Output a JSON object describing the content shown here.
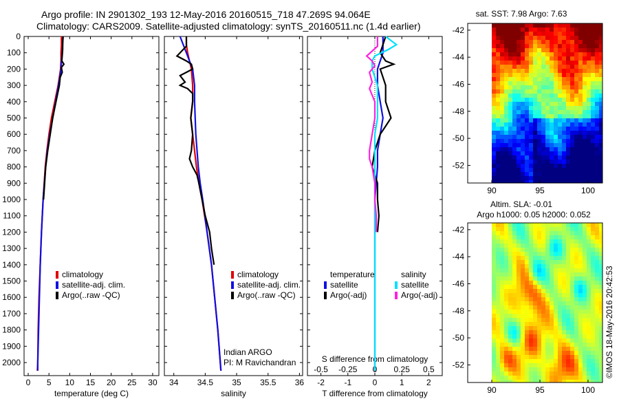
{
  "header": {
    "line1": "Argo profile: IN 2901302_193 12-May-2016 20160515_718 47.269S 94.064E",
    "line2": "Climatology: CARS2009. Satellite-adjusted climatology: synTS_20160511.nc (1.4d earlier)"
  },
  "colors": {
    "climatology": "#e00000",
    "satellite": "#1010e0",
    "argo": "#000000",
    "salinity_satellite": "#00e0ff",
    "salinity_argo": "#ff20e0"
  },
  "chart_data": [
    {
      "type": "line",
      "id": "temperature",
      "xlabel": "temperature (deg C)",
      "ylabel": "",
      "xlim": [
        -1,
        31.5
      ],
      "ylim": [
        2080,
        0
      ],
      "x_ticks": [
        "0",
        "5",
        "10",
        "15",
        "20",
        "25",
        "30"
      ],
      "x_tick_values": [
        0,
        5,
        10,
        15,
        20,
        25,
        30
      ],
      "y_ticks": [
        0,
        100,
        200,
        300,
        400,
        500,
        600,
        700,
        800,
        900,
        1000,
        1100,
        1200,
        1300,
        1400,
        1500,
        1600,
        1700,
        1800,
        1900,
        2000
      ],
      "legend": [
        "climatology",
        "satellite-adj. clim.",
        "Argo(..raw -QC)"
      ],
      "series": [
        {
          "name": "climatology",
          "color": "#e00000",
          "depth": [
            0,
            50,
            100,
            150,
            200,
            250,
            300,
            400,
            500,
            600,
            700,
            800,
            1000,
            1200,
            1400,
            1600,
            1800,
            2000,
            2050
          ],
          "values": [
            8.0,
            8.0,
            7.9,
            7.9,
            7.8,
            7.5,
            7.2,
            6.4,
            5.6,
            5.0,
            4.5,
            4.1,
            3.6,
            3.2,
            2.9,
            2.6,
            2.4,
            2.3,
            2.2
          ]
        },
        {
          "name": "satellite-adj. clim.",
          "color": "#1010e0",
          "depth": [
            0,
            50,
            100,
            150,
            200,
            250,
            300,
            400,
            500,
            600,
            700,
            800,
            1000,
            1200,
            1400,
            1600,
            1800,
            2000,
            2050
          ],
          "values": [
            8.4,
            8.3,
            8.2,
            8.0,
            7.9,
            7.6,
            7.3,
            6.6,
            5.9,
            5.2,
            4.6,
            4.2,
            3.6,
            3.2,
            2.9,
            2.7,
            2.5,
            2.3,
            2.3
          ]
        },
        {
          "name": "Argo(..raw -QC)",
          "color": "#000000",
          "depth": [
            0,
            40,
            80,
            150,
            170,
            190,
            220,
            250,
            300,
            400,
            500,
            600,
            700,
            800,
            1000
          ],
          "values": [
            8.4,
            8.3,
            8.3,
            8.1,
            8.6,
            8.0,
            8.2,
            7.7,
            7.5,
            6.7,
            5.9,
            5.3,
            4.7,
            4.2,
            3.7
          ]
        }
      ]
    },
    {
      "type": "line",
      "id": "salinity",
      "xlabel": "salinity",
      "ylabel": "",
      "xlim": [
        33.85,
        36.05
      ],
      "ylim": [
        2080,
        0
      ],
      "x_ticks": [
        "34",
        "34.5",
        "35",
        "35.5",
        "36"
      ],
      "x_tick_values": [
        34,
        34.5,
        35,
        35.5,
        36
      ],
      "legend": [
        "climatology",
        "satellite-adj. clim.",
        "Argo(..raw -QC)"
      ],
      "annotation": [
        "Indian ARGO",
        "PI: M Ravichandran"
      ],
      "series": [
        {
          "name": "climatology",
          "color": "#e00000",
          "depth": [
            0,
            50,
            100,
            150,
            200,
            300,
            400,
            500,
            600,
            700,
            800,
            900,
            1000,
            1200,
            1400,
            1600,
            1800,
            2000,
            2050
          ],
          "values": [
            34.2,
            34.2,
            34.22,
            34.25,
            34.28,
            34.3,
            34.3,
            34.27,
            34.3,
            34.33,
            34.36,
            34.4,
            34.45,
            34.53,
            34.6,
            34.65,
            34.7,
            34.74,
            34.75
          ]
        },
        {
          "name": "satellite-adj. clim.",
          "color": "#1010e0",
          "depth": [
            0,
            50,
            100,
            150,
            200,
            300,
            400,
            500,
            600,
            700,
            800,
            900,
            1000,
            1200,
            1400,
            1600,
            1800,
            2000,
            2050
          ],
          "values": [
            34.1,
            34.15,
            34.2,
            34.25,
            34.3,
            34.33,
            34.33,
            34.34,
            34.35,
            34.37,
            34.39,
            34.42,
            34.46,
            34.53,
            34.6,
            34.65,
            34.7,
            34.74,
            34.75
          ]
        },
        {
          "name": "Argo(..raw -QC)",
          "color": "#000000",
          "depth": [
            0,
            60,
            120,
            150,
            170,
            200,
            240,
            280,
            300,
            320,
            350,
            400,
            500,
            600,
            700,
            750,
            800,
            850,
            900,
            1000,
            1100,
            1200,
            1300,
            1350,
            1400
          ],
          "values": [
            34.2,
            34.2,
            34.05,
            34.2,
            34.28,
            34.3,
            34.1,
            34.18,
            34.1,
            34.22,
            34.3,
            34.3,
            34.27,
            34.3,
            34.28,
            34.25,
            34.3,
            34.37,
            34.4,
            34.45,
            34.5,
            34.57,
            34.6,
            34.62,
            34.64
          ]
        }
      ]
    },
    {
      "type": "line",
      "id": "difference",
      "xlabel": "T difference from climatology",
      "xlabel_top": "S difference from climatology",
      "xlim": [
        -2.5,
        2.5
      ],
      "ylim": [
        2080,
        0
      ],
      "x_ticks": [
        "-2",
        "-1",
        "0",
        "1",
        "2"
      ],
      "x_tick_values": [
        -2,
        -1,
        0,
        1,
        2
      ],
      "x_ticks_top": [
        "-0.5",
        "-0.25",
        "0",
        "0.25",
        "0.5"
      ],
      "x_tick_values_top": [
        -2,
        -1,
        0,
        1,
        2
      ],
      "legend_temperature_title": "temperature",
      "legend_salinity_title": "salinity",
      "legend": [
        "satellite",
        "Argo(-adj)",
        "satellite",
        "Argo(-adj)"
      ],
      "series": [
        {
          "name": "satellite",
          "group": "temperature",
          "color": "#1010e0",
          "depth": [
            0,
            50,
            100,
            150,
            200,
            300,
            400,
            500,
            600,
            700,
            800,
            1000,
            1200,
            1500,
            1800,
            2050
          ],
          "values": [
            0.3,
            0.3,
            0.3,
            0.2,
            0.1,
            0.1,
            0.2,
            0.3,
            0.2,
            0.1,
            0.1,
            0.0,
            0.0,
            0.0,
            0.0,
            0.0
          ]
        },
        {
          "name": "Argo(-adj)",
          "group": "temperature",
          "color": "#000000",
          "depth": [
            0,
            50,
            100,
            150,
            170,
            200,
            250,
            300,
            400,
            500,
            550,
            600,
            700,
            800,
            900,
            1000,
            1100,
            1200
          ],
          "values": [
            0.4,
            0.3,
            0.2,
            0.4,
            0.7,
            0.2,
            0.3,
            0.4,
            0.4,
            0.6,
            0.4,
            0.2,
            0.0,
            -0.1,
            0.1,
            0.1,
            0.15,
            0.1
          ]
        },
        {
          "name": "satellite",
          "group": "salinity",
          "color": "#00e0ff",
          "depth": [
            0,
            50,
            80,
            120,
            150,
            200,
            250,
            300,
            400,
            500,
            600,
            700,
            800,
            1000,
            1200,
            1500,
            1800,
            2050
          ],
          "values": [
            0.4,
            0.8,
            0.5,
            0.0,
            -0.1,
            -0.1,
            0.0,
            0.1,
            0.1,
            0.1,
            0.0,
            0.0,
            0.0,
            0.0,
            0.0,
            0.0,
            0.0,
            0.0
          ]
        },
        {
          "name": "Argo(-adj)",
          "group": "salinity",
          "color": "#ff20e0",
          "depth": [
            0,
            60,
            120,
            150,
            180,
            220,
            280,
            320,
            400,
            500,
            600,
            700,
            750,
            800,
            900,
            1000,
            1100,
            1200
          ],
          "values": [
            0.1,
            0.1,
            -0.3,
            -0.1,
            0.0,
            -0.2,
            -0.1,
            -0.2,
            0.0,
            0.0,
            -0.1,
            -0.2,
            -0.2,
            -0.1,
            0.0,
            0.0,
            0.05,
            0.05
          ]
        }
      ]
    },
    {
      "type": "heatmap",
      "id": "sst_map",
      "title": "sat. SST: 7.98 Argo: 7.63",
      "xlim": [
        87.5,
        101.5
      ],
      "ylim": [
        -53.3,
        -41.5
      ],
      "data_x_range": [
        90,
        101.5
      ],
      "x_ticks": [
        "90",
        "95",
        "100"
      ],
      "x_tick_values": [
        90,
        95,
        100
      ],
      "y_ticks": [
        "-42",
        "-44",
        "-46",
        "-48",
        "-50",
        "-52"
      ],
      "y_tick_values": [
        -42,
        -44,
        -46,
        -48,
        -50,
        -52
      ],
      "colormap": "jet"
    },
    {
      "type": "heatmap",
      "id": "sla_map",
      "title": "Altim. SLA: -0.01",
      "subtitle": "Argo h1000: 0.05 h2000: 0.052",
      "xlim": [
        87.5,
        101.5
      ],
      "ylim": [
        -53.3,
        -41.5
      ],
      "data_x_range": [
        90,
        101.5
      ],
      "x_ticks": [
        "90",
        "95",
        "100"
      ],
      "x_tick_values": [
        90,
        95,
        100
      ],
      "y_ticks": [
        "-42",
        "-44",
        "-46",
        "-48",
        "-50",
        "-52"
      ],
      "y_tick_values": [
        -42,
        -44,
        -46,
        -48,
        -50,
        -52
      ],
      "colormap": "jet"
    }
  ],
  "footer": {
    "credit": "©IMOS 18-May-2016 20:42:53"
  }
}
